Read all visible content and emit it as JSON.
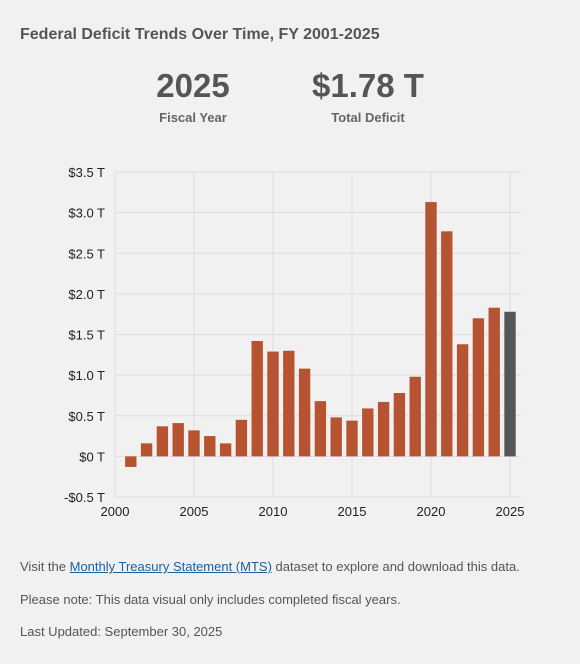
{
  "header": {
    "title": "Federal Deficit Trends Over Time, FY 2001-2025"
  },
  "stats": {
    "year_value": "2025",
    "year_label": "Fiscal Year",
    "deficit_value": "$1.78 T",
    "deficit_label": "Total Deficit"
  },
  "colors": {
    "bar": "#b65432",
    "highlight_bar": "#555555",
    "grid": "#dddddd",
    "link": "#1a5f9e"
  },
  "chart_data": {
    "type": "bar",
    "x": [
      2001,
      2002,
      2003,
      2004,
      2005,
      2006,
      2007,
      2008,
      2009,
      2010,
      2011,
      2012,
      2013,
      2014,
      2015,
      2016,
      2017,
      2018,
      2019,
      2020,
      2021,
      2022,
      2023,
      2024,
      2025
    ],
    "values": [
      -0.13,
      0.16,
      0.37,
      0.41,
      0.32,
      0.25,
      0.16,
      0.45,
      1.42,
      1.29,
      1.3,
      1.08,
      0.68,
      0.48,
      0.44,
      0.59,
      0.67,
      0.78,
      0.98,
      3.13,
      2.77,
      1.38,
      1.7,
      1.83,
      1.78
    ],
    "highlight": 2025,
    "ylim": [
      -0.5,
      3.5
    ],
    "xlim": [
      2000,
      2025
    ],
    "y_ticks": [
      -0.5,
      0,
      0.5,
      1.0,
      1.5,
      2.0,
      2.5,
      3.0,
      3.5
    ],
    "y_tick_labels": [
      "-$0.5 T",
      "$0 T",
      "$0.5 T",
      "$1.0 T",
      "$1.5 T",
      "$2.0 T",
      "$2.5 T",
      "$3.0 T",
      "$3.5 T"
    ],
    "x_ticks": [
      2000,
      2005,
      2010,
      2015,
      2020,
      2025
    ],
    "x_tick_labels": [
      "2000",
      "2005",
      "2010",
      "2015",
      "2020",
      "2025"
    ],
    "grid": true,
    "xlabel": "",
    "ylabel": ""
  },
  "footer": {
    "visit_prefix": "Visit the ",
    "link_text": "Monthly Treasury Statement (MTS)",
    "visit_suffix": " dataset to explore and download this data.",
    "note": "Please note: This data visual only includes completed fiscal years.",
    "updated": "Last Updated: September 30, 2025"
  }
}
